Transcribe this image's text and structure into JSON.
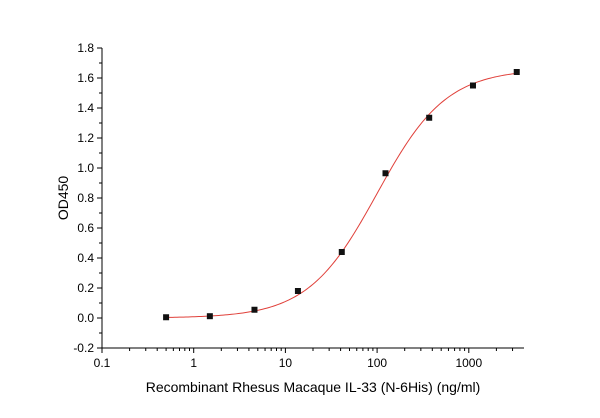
{
  "chart_data": {
    "type": "scatter",
    "title": "",
    "xlabel": "Recombinant Rhesus Macaque IL-33 (N-6His) (ng/ml)",
    "ylabel": "OD450",
    "x_scale": "log",
    "xlim": [
      0.1,
      4000
    ],
    "ylim": [
      -0.2,
      1.8
    ],
    "x_ticks": [
      0.1,
      1,
      10,
      100,
      1000
    ],
    "x_tick_labels": [
      "0.1",
      "1",
      "10",
      "100",
      "1000"
    ],
    "y_ticks": [
      -0.2,
      0.0,
      0.2,
      0.4,
      0.6,
      0.8,
      1.0,
      1.2,
      1.4,
      1.6,
      1.8
    ],
    "y_tick_labels": [
      "-0.2",
      "0.0",
      "0.2",
      "0.4",
      "0.6",
      "0.8",
      "1.0",
      "1.2",
      "1.4",
      "1.6",
      "1.8"
    ],
    "grid": false,
    "legend": "none",
    "series": [
      {
        "x": [
          0.5,
          1.5,
          4.6,
          13.7,
          41.2,
          123.5,
          370,
          1111,
          3333
        ],
        "y": [
          0.005,
          0.012,
          0.055,
          0.18,
          0.44,
          0.965,
          1.335,
          1.55,
          1.64
        ],
        "marker": "square",
        "color": "#111111"
      }
    ],
    "fit": {
      "model": "4PL",
      "bottom": 0.0,
      "top": 1.66,
      "ec50": 100,
      "hill": 1.15,
      "color": "#e0403a"
    }
  }
}
